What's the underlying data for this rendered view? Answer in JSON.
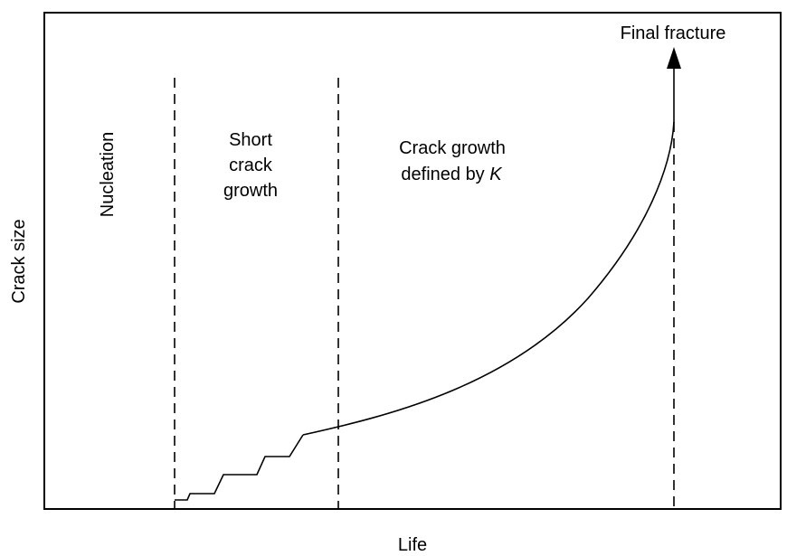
{
  "axes": {
    "xlabel": "Life",
    "ylabel": "Crack size"
  },
  "regions": {
    "nucleation": "Nucleation",
    "short_crack": [
      "Short",
      "crack",
      "growth"
    ],
    "long_crack_line1": "Crack growth",
    "long_crack_line2_prefix": "defined by ",
    "long_crack_line2_symbol": "K"
  },
  "annotations": {
    "final_fracture": "Final fracture"
  }
}
